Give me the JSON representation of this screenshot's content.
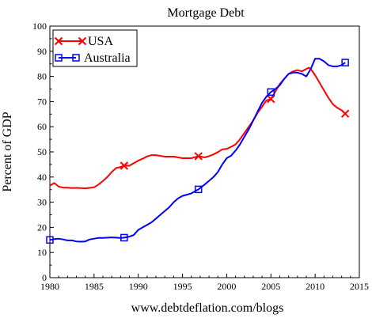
{
  "chart_data": {
    "type": "line",
    "title": "Mortgage Debt",
    "xlabel": "",
    "ylabel": "Percent of GDP",
    "footer": "www.debtdeflation.com/blogs",
    "xlim": [
      1980,
      2015
    ],
    "ylim": [
      0,
      100
    ],
    "x_ticks": [
      1980,
      1985,
      1990,
      1995,
      2000,
      2005,
      2010,
      2015
    ],
    "y_ticks": [
      0,
      10,
      20,
      30,
      40,
      50,
      60,
      70,
      80,
      90,
      100
    ],
    "grid": false,
    "legend": "top-left",
    "series": [
      {
        "name": "USA",
        "color": "#ff0000",
        "marker": "x",
        "points": [
          [
            1980,
            36.6
          ],
          [
            1980.5,
            37.6
          ],
          [
            1981,
            36.2
          ],
          [
            1981.5,
            35.8
          ],
          [
            1982,
            35.8
          ],
          [
            1982.5,
            35.6
          ],
          [
            1983,
            35.7
          ],
          [
            1983.5,
            35.6
          ],
          [
            1984,
            35.5
          ],
          [
            1984.5,
            35.7
          ],
          [
            1985,
            35.9
          ],
          [
            1985.5,
            37.0
          ],
          [
            1986,
            38.4
          ],
          [
            1986.5,
            40.0
          ],
          [
            1987,
            42.0
          ],
          [
            1987.5,
            43.6
          ],
          [
            1988,
            44.0
          ],
          [
            1988.4,
            44.5
          ],
          [
            1989,
            44.5
          ],
          [
            1989.5,
            45.5
          ],
          [
            1990,
            46.5
          ],
          [
            1990.5,
            47.3
          ],
          [
            1991,
            48.2
          ],
          [
            1991.5,
            48.7
          ],
          [
            1992,
            48.7
          ],
          [
            1993,
            48.1
          ],
          [
            1994,
            48.1
          ],
          [
            1995,
            47.5
          ],
          [
            1996,
            47.5
          ],
          [
            1996.8,
            48.3
          ],
          [
            1997.5,
            47.8
          ],
          [
            1998,
            48.3
          ],
          [
            1998.5,
            49.0
          ],
          [
            1999,
            49.9
          ],
          [
            1999.5,
            51.0
          ],
          [
            2000,
            51.2
          ],
          [
            2000.5,
            52.0
          ],
          [
            2001,
            53.0
          ],
          [
            2001.5,
            55.0
          ],
          [
            2002,
            57.5
          ],
          [
            2002.5,
            60.0
          ],
          [
            2003,
            62.5
          ],
          [
            2003.5,
            65.5
          ],
          [
            2004,
            68.0
          ],
          [
            2004.5,
            70.5
          ],
          [
            2005,
            71.0
          ],
          [
            2005.5,
            74.0
          ],
          [
            2006,
            77.0
          ],
          [
            2006.5,
            79.0
          ],
          [
            2007,
            81.0
          ],
          [
            2007.5,
            82.0
          ],
          [
            2008,
            82.5
          ],
          [
            2008.5,
            82.0
          ],
          [
            2009,
            83.0
          ],
          [
            2009.3,
            83.5
          ],
          [
            2009.6,
            82.5
          ],
          [
            2010,
            80.5
          ],
          [
            2010.5,
            77.5
          ],
          [
            2011,
            74.5
          ],
          [
            2011.5,
            71.5
          ],
          [
            2012,
            69.0
          ],
          [
            2012.5,
            67.5
          ],
          [
            2013,
            66.5
          ],
          [
            2013.4,
            65.2
          ]
        ],
        "marker_points": [
          [
            1988.4,
            44.5
          ],
          [
            1996.8,
            48.3
          ],
          [
            2005,
            71.0
          ],
          [
            2013.4,
            65.2
          ]
        ]
      },
      {
        "name": "Australia",
        "color": "#0000ff",
        "marker": "square",
        "points": [
          [
            1980,
            15.0
          ],
          [
            1980.5,
            15.3
          ],
          [
            1981,
            15.5
          ],
          [
            1981.5,
            15.2
          ],
          [
            1982,
            14.8
          ],
          [
            1982.5,
            14.8
          ],
          [
            1983,
            14.4
          ],
          [
            1983.5,
            14.3
          ],
          [
            1984,
            14.4
          ],
          [
            1984.5,
            15.2
          ],
          [
            1985,
            15.5
          ],
          [
            1985.5,
            15.8
          ],
          [
            1986,
            15.8
          ],
          [
            1987,
            16.0
          ],
          [
            1988,
            15.8
          ],
          [
            1988.4,
            15.9
          ],
          [
            1989,
            16.3
          ],
          [
            1989.5,
            17.0
          ],
          [
            1990,
            19.0
          ],
          [
            1990.5,
            20.0
          ],
          [
            1991,
            21.0
          ],
          [
            1991.5,
            22.0
          ],
          [
            1992,
            23.5
          ],
          [
            1992.5,
            25.0
          ],
          [
            1993,
            26.5
          ],
          [
            1993.5,
            28.0
          ],
          [
            1994,
            30.0
          ],
          [
            1994.5,
            31.5
          ],
          [
            1995,
            32.5
          ],
          [
            1995.5,
            33.0
          ],
          [
            1996,
            33.5
          ],
          [
            1996.5,
            34.5
          ],
          [
            1996.8,
            35.1
          ],
          [
            1997.5,
            37.0
          ],
          [
            1998,
            38.5
          ],
          [
            1998.5,
            40.0
          ],
          [
            1999,
            42.0
          ],
          [
            1999.5,
            45.0
          ],
          [
            2000,
            47.5
          ],
          [
            2000.5,
            48.5
          ],
          [
            2001,
            50.5
          ],
          [
            2001.5,
            53.0
          ],
          [
            2002,
            56.0
          ],
          [
            2002.5,
            59.0
          ],
          [
            2003,
            62.5
          ],
          [
            2003.5,
            66.0
          ],
          [
            2004,
            69.5
          ],
          [
            2004.5,
            72.0
          ],
          [
            2005,
            73.8
          ],
          [
            2005.5,
            75.0
          ],
          [
            2006,
            76.5
          ],
          [
            2006.5,
            79.0
          ],
          [
            2007,
            81.0
          ],
          [
            2007.5,
            81.5
          ],
          [
            2008,
            81.5
          ],
          [
            2008.5,
            81.0
          ],
          [
            2009,
            80.0
          ],
          [
            2009.5,
            83.0
          ],
          [
            2010,
            87.0
          ],
          [
            2010.5,
            87.0
          ],
          [
            2011,
            86.0
          ],
          [
            2011.5,
            84.5
          ],
          [
            2012,
            84.0
          ],
          [
            2012.5,
            84.0
          ],
          [
            2013,
            84.5
          ],
          [
            2013.4,
            85.5
          ]
        ],
        "marker_points": [
          [
            1980,
            15.0
          ],
          [
            1988.4,
            15.9
          ],
          [
            1996.8,
            35.1
          ],
          [
            2005,
            73.8
          ],
          [
            2013.4,
            85.5
          ]
        ]
      }
    ]
  }
}
